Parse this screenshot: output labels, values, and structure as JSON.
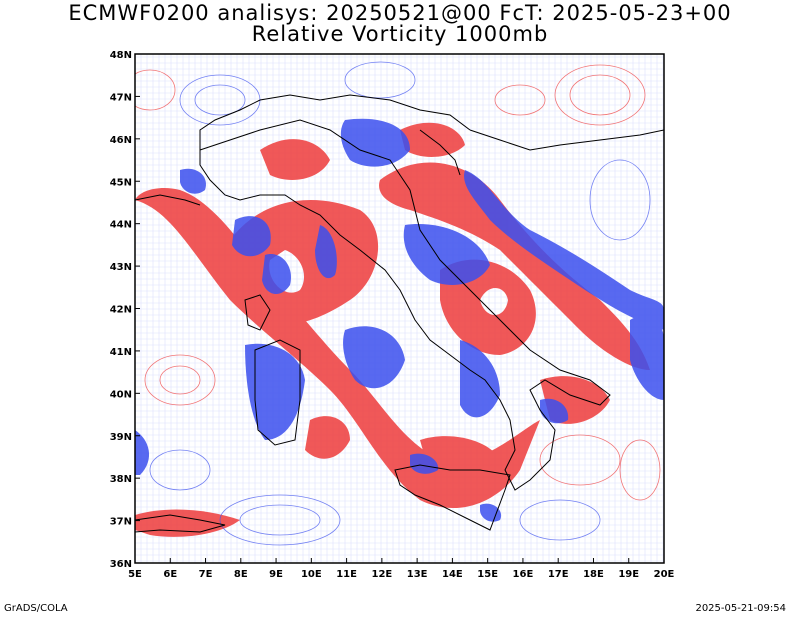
{
  "title_line1": "ECMWF0200 analisys: 20250521@00 FcT: 2025-05-23+00",
  "title_line2": "Relative Vorticity 1000mb",
  "footer_left": "GrADS/COLA",
  "footer_right": "2025-05-21-09:54",
  "map": {
    "lon_range": [
      5,
      20
    ],
    "lat_range": [
      36,
      48
    ],
    "lon_ticks": [
      "5E",
      "6E",
      "7E",
      "8E",
      "9E",
      "10E",
      "11E",
      "12E",
      "13E",
      "14E",
      "15E",
      "16E",
      "17E",
      "18E",
      "19E",
      "20E"
    ],
    "lat_ticks": [
      "36N",
      "37N",
      "38N",
      "39N",
      "40N",
      "41N",
      "42N",
      "43N",
      "44N",
      "45N",
      "46N",
      "47N",
      "48N"
    ],
    "positive_color": "#ee3c3c",
    "negative_color": "#3c50ee",
    "coast_color": "#000000"
  }
}
